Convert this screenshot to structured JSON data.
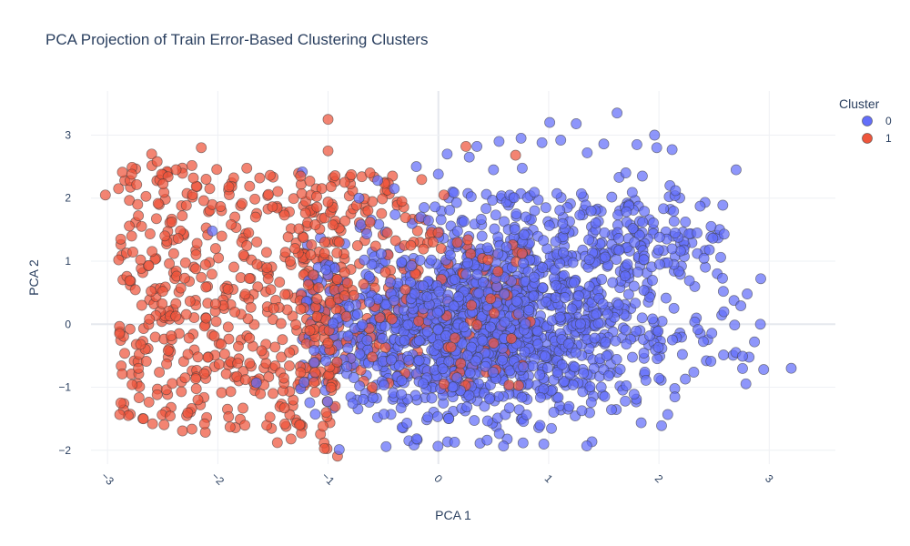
{
  "chart_data": {
    "type": "scatter",
    "title": "PCA Projection of Train Error-Based Clustering Clusters",
    "xlabel": "PCA 1",
    "ylabel": "PCA 2",
    "xlim": [
      -3.15,
      3.6
    ],
    "ylim": [
      -2.22,
      3.7
    ],
    "x_ticks": [
      -3,
      -2,
      -1,
      0,
      1,
      2,
      3
    ],
    "y_ticks": [
      -2,
      -1,
      0,
      1,
      2,
      3
    ],
    "x_tick_labels": [
      "−3",
      "−2",
      "−1",
      "0",
      "1",
      "2",
      "3"
    ],
    "y_tick_labels": [
      "−2",
      "−1",
      "0",
      "1",
      "2",
      "3"
    ],
    "grid": true,
    "legend": {
      "title": "Cluster",
      "position": "top-right"
    },
    "series": [
      {
        "name": "0",
        "color": "#636efa",
        "points": [
          [
            3.2,
            -0.7
          ],
          [
            2.95,
            -0.72
          ],
          [
            2.92,
            0.0
          ],
          [
            2.8,
            0.48
          ],
          [
            2.7,
            2.45
          ],
          [
            1.62,
            3.35
          ],
          [
            1.01,
            3.2
          ],
          [
            1.25,
            3.18
          ],
          [
            1.96,
            3.0
          ],
          [
            1.5,
            2.86
          ],
          [
            1.8,
            2.85
          ],
          [
            1.11,
            2.92
          ],
          [
            0.94,
            2.88
          ],
          [
            1.98,
            2.8
          ],
          [
            2.12,
            2.77
          ],
          [
            0.75,
            2.95
          ],
          [
            0.35,
            2.82
          ],
          [
            0.55,
            2.9
          ],
          [
            0.08,
            2.7
          ],
          [
            0.28,
            2.65
          ],
          [
            1.35,
            2.72
          ],
          [
            2.1,
            2.2
          ],
          [
            2.15,
            2.12
          ],
          [
            1.7,
            2.4
          ],
          [
            1.85,
            2.35
          ],
          [
            -2.05,
            1.48
          ],
          [
            -1.65,
            -0.93
          ],
          [
            -0.2,
            2.5
          ],
          [
            0.0,
            2.38
          ],
          [
            0.5,
            2.45
          ],
          [
            -0.4,
            2.15
          ],
          [
            -0.55,
            2.28
          ],
          [
            -0.72,
            2.0
          ]
        ]
      },
      {
        "name": "1",
        "color": "#ef553b",
        "points": [
          [
            -1.0,
            3.25
          ],
          [
            -1.0,
            2.75
          ],
          [
            -2.6,
            2.7
          ],
          [
            -2.15,
            2.8
          ],
          [
            -2.78,
            2.38
          ],
          [
            -3.02,
            2.05
          ],
          [
            -2.9,
            2.15
          ],
          [
            -2.55,
            2.58
          ],
          [
            -1.9,
            2.18
          ],
          [
            -1.62,
            2.32
          ],
          [
            -1.25,
            2.35
          ],
          [
            -0.85,
            2.25
          ],
          [
            -0.62,
            2.4
          ],
          [
            -2.72,
            1.72
          ],
          [
            -2.88,
            1.35
          ],
          [
            -2.48,
            1.4
          ],
          [
            -2.02,
            1.2
          ],
          [
            -1.72,
            1.45
          ],
          [
            -2.4,
            1.12
          ],
          [
            -2.7,
            1.02
          ],
          [
            -2.5,
            0.52
          ],
          [
            -2.2,
            0.88
          ],
          [
            -2.62,
            0.08
          ],
          [
            -2.02,
            0.32
          ],
          [
            -1.52,
            0.55
          ],
          [
            -2.7,
            -0.32
          ],
          [
            -2.45,
            -0.42
          ],
          [
            -2.18,
            -0.52
          ],
          [
            -1.82,
            -0.62
          ],
          [
            -2.55,
            -1.12
          ],
          [
            -2.18,
            -1.2
          ],
          [
            -2.12,
            -1.58
          ],
          [
            -1.75,
            -0.88
          ],
          [
            -1.35,
            -0.45
          ],
          [
            -1.1,
            0.12
          ],
          [
            -1.0,
            -0.3
          ],
          [
            -0.85,
            0.45
          ],
          [
            -0.6,
            -0.52
          ],
          [
            -0.42,
            0.08
          ],
          [
            -0.25,
            1.25
          ],
          [
            0.25,
            2.82
          ],
          [
            0.7,
            2.68
          ],
          [
            0.05,
            2.05
          ],
          [
            0.45,
            1.02
          ],
          [
            0.15,
            -0.22
          ],
          [
            0.5,
            -0.3
          ],
          [
            -0.62,
            1.62
          ],
          [
            -0.9,
            1.3
          ],
          [
            -1.3,
            1.2
          ],
          [
            -0.3,
            0.55
          ],
          [
            0.3,
            0.3
          ],
          [
            -0.6,
            -1.0
          ],
          [
            -1.5,
            -1.1
          ],
          [
            0.05,
            -0.95
          ],
          [
            -0.85,
            0.82
          ]
        ]
      }
    ]
  }
}
